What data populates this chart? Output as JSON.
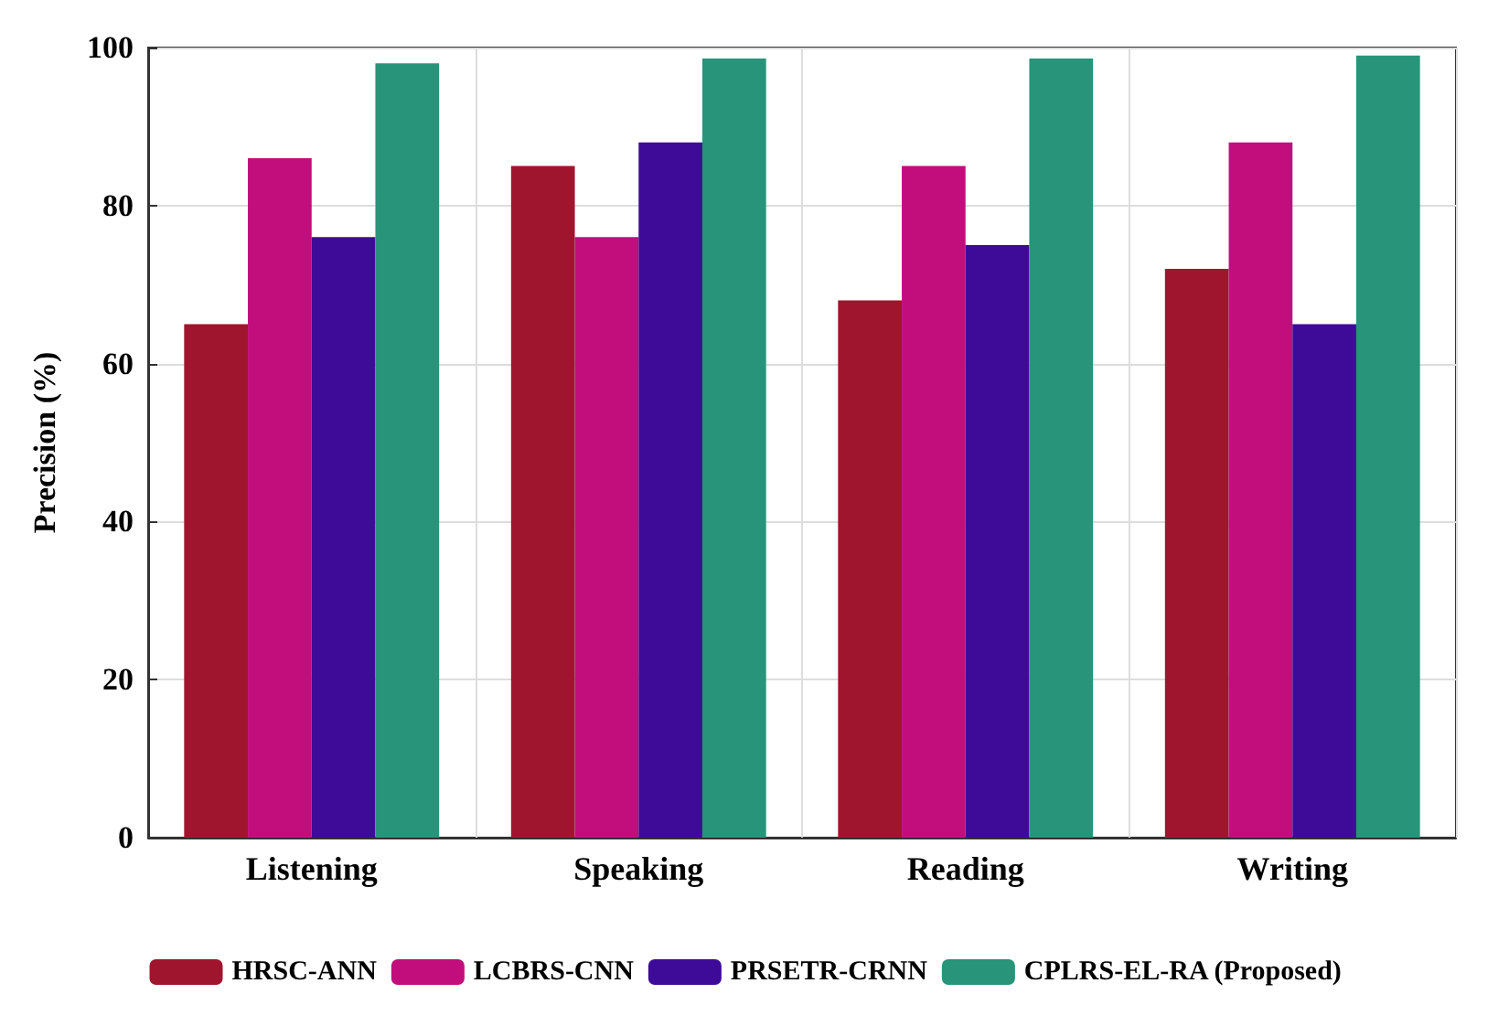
{
  "chart_data": {
    "type": "bar",
    "ylabel": "Precision (%)",
    "categories": [
      "Listening",
      "Speaking",
      "Reading",
      "Writing"
    ],
    "series": [
      {
        "name": "HRSC-ANN",
        "color": "#a0152e",
        "values": [
          65,
          85,
          68,
          72
        ]
      },
      {
        "name": "LCBRS-CNN",
        "color": "#c20e7c",
        "values": [
          86,
          76,
          85,
          88
        ]
      },
      {
        "name": "PRSETR-CRNN",
        "color": "#3e0b98",
        "values": [
          76,
          88,
          75,
          65
        ]
      },
      {
        "name": "CPLRS-EL-RA (Proposed)",
        "color": "#289479",
        "values": [
          98,
          98.6,
          98.6,
          99
        ]
      }
    ],
    "ylim": [
      0,
      100
    ],
    "yticks": [
      0,
      20,
      40,
      60,
      80,
      100
    ],
    "grid": true,
    "legend": "bottom"
  }
}
